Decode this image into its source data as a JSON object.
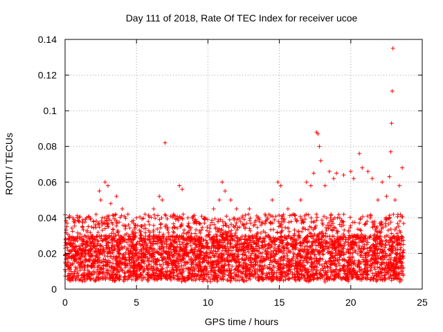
{
  "chart_data": {
    "type": "scatter",
    "title": "Day 111 of 2018, Rate Of TEC Index for receiver ucoe",
    "xlabel": "GPS time / hours",
    "ylabel": "ROTI / TECUs",
    "xlim": [
      0,
      25
    ],
    "ylim": [
      0,
      0.14
    ],
    "x_ticks": [
      0,
      5,
      10,
      15,
      20,
      25
    ],
    "x_tick_labels": [
      "0",
      "5",
      "10",
      "15",
      "20",
      "25"
    ],
    "y_ticks": [
      0,
      0.02,
      0.04,
      0.06,
      0.08,
      0.1,
      0.12,
      0.14
    ],
    "y_tick_labels": [
      "0",
      "0.02",
      "0.04",
      "0.06",
      "0.08",
      "0.1",
      "0.12",
      "0.14"
    ],
    "grid": true,
    "marker": "plus",
    "series": [
      {
        "name": "ROTI",
        "color": "#ff0000",
        "description": "dense band of points mostly between 0.005 and 0.03 across 0-23.7 h, with upper excursions",
        "x_range": [
          0,
          23.7
        ],
        "typical_range": [
          0.005,
          0.03
        ],
        "points": [
          [
            0.3,
            0.04
          ],
          [
            0.6,
            0.038
          ],
          [
            1.2,
            0.035
          ],
          [
            1.5,
            0.04
          ],
          [
            2.0,
            0.038
          ],
          [
            2.4,
            0.055
          ],
          [
            2.5,
            0.05
          ],
          [
            2.8,
            0.06
          ],
          [
            3.0,
            0.058
          ],
          [
            3.2,
            0.048
          ],
          [
            3.6,
            0.052
          ],
          [
            4.0,
            0.045
          ],
          [
            4.4,
            0.042
          ],
          [
            5.0,
            0.04
          ],
          [
            5.6,
            0.042
          ],
          [
            6.2,
            0.045
          ],
          [
            6.6,
            0.052
          ],
          [
            6.8,
            0.05
          ],
          [
            7.0,
            0.082
          ],
          [
            7.6,
            0.042
          ],
          [
            8.0,
            0.058
          ],
          [
            8.2,
            0.056
          ],
          [
            8.6,
            0.04
          ],
          [
            9.2,
            0.038
          ],
          [
            9.8,
            0.04
          ],
          [
            10.4,
            0.045
          ],
          [
            10.8,
            0.05
          ],
          [
            11.0,
            0.06
          ],
          [
            11.2,
            0.055
          ],
          [
            11.6,
            0.05
          ],
          [
            12.0,
            0.045
          ],
          [
            12.4,
            0.04
          ],
          [
            12.9,
            0.045
          ],
          [
            13.5,
            0.04
          ],
          [
            14.0,
            0.042
          ],
          [
            14.5,
            0.05
          ],
          [
            14.9,
            0.06
          ],
          [
            15.1,
            0.058
          ],
          [
            15.6,
            0.045
          ],
          [
            16.0,
            0.042
          ],
          [
            16.5,
            0.05
          ],
          [
            16.9,
            0.06
          ],
          [
            17.2,
            0.058
          ],
          [
            17.4,
            0.065
          ],
          [
            17.6,
            0.088
          ],
          [
            17.7,
            0.087
          ],
          [
            17.8,
            0.08
          ],
          [
            17.9,
            0.072
          ],
          [
            18.2,
            0.058
          ],
          [
            18.5,
            0.066
          ],
          [
            18.8,
            0.062
          ],
          [
            19.0,
            0.065
          ],
          [
            19.5,
            0.064
          ],
          [
            20.0,
            0.066
          ],
          [
            20.2,
            0.062
          ],
          [
            20.6,
            0.076
          ],
          [
            20.8,
            0.068
          ],
          [
            21.2,
            0.066
          ],
          [
            21.5,
            0.062
          ],
          [
            21.9,
            0.05
          ],
          [
            22.2,
            0.06
          ],
          [
            22.5,
            0.052
          ],
          [
            22.7,
            0.063
          ],
          [
            22.8,
            0.077
          ],
          [
            22.85,
            0.093
          ],
          [
            22.9,
            0.111
          ],
          [
            22.95,
            0.135
          ],
          [
            23.1,
            0.05
          ],
          [
            23.4,
            0.058
          ],
          [
            23.6,
            0.068
          ]
        ]
      }
    ]
  }
}
